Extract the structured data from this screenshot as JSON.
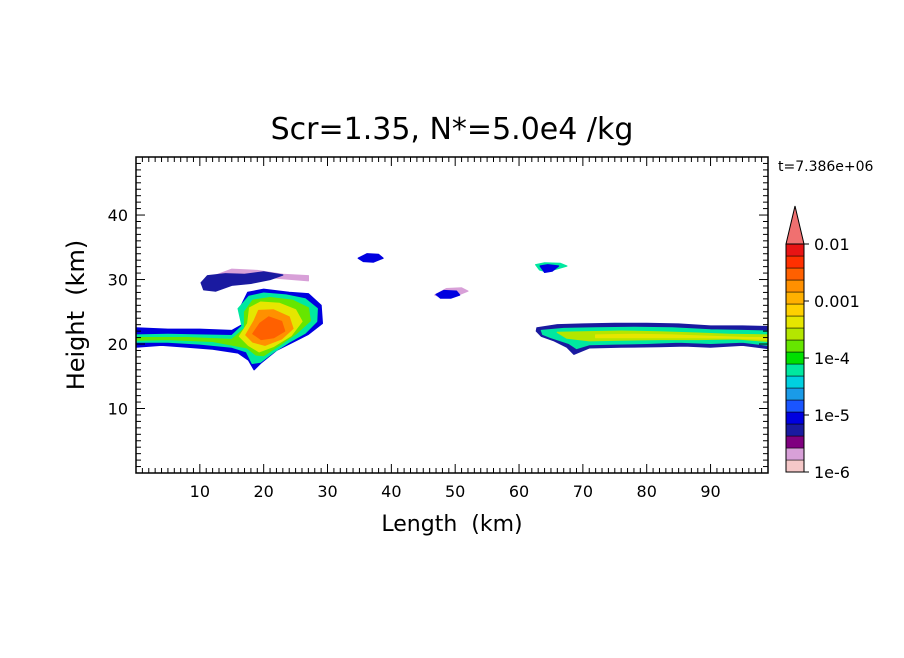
{
  "chart_data": {
    "type": "heatmap",
    "title": "Scr=1.35, N*=5.0e4 /kg",
    "xlabel": "Length  (km)",
    "ylabel": "Height  (km)",
    "time_label": "t=7.386e+06",
    "xlim": [
      0,
      99
    ],
    "ylim": [
      0,
      49
    ],
    "x_ticks": [
      10,
      20,
      30,
      40,
      50,
      60,
      70,
      80,
      90
    ],
    "y_ticks": [
      10,
      20,
      30,
      40
    ],
    "x_minor_step": 1,
    "y_minor_step": 1,
    "grid": false,
    "colorbar": {
      "scale": "log",
      "range": [
        1e-06,
        0.01
      ],
      "labels": [
        "0.01",
        "0.001",
        "1e-4",
        "1e-5",
        "1e-6"
      ],
      "label_values": [
        0.01,
        0.001,
        0.0001,
        1e-05,
        1e-06
      ],
      "colors": [
        "#f5c8c8",
        "#d8a0d8",
        "#7f007f",
        "#1a1aa0",
        "#0000e0",
        "#1a55ff",
        "#1a9be8",
        "#00d0e0",
        "#00e8a0",
        "#00e000",
        "#66e600",
        "#b4e600",
        "#e6e600",
        "#ffd000",
        "#ffb000",
        "#ff9000",
        "#ff6000",
        "#ff3000",
        "#e81414"
      ],
      "extend_color": "#f07070"
    },
    "regions": [
      {
        "level": 1,
        "pts": [
          [
            12,
            30.5
          ],
          [
            15,
            31.6
          ],
          [
            19,
            31.4
          ],
          [
            23,
            30.8
          ],
          [
            27,
            30.6
          ],
          [
            27,
            29.8
          ],
          [
            22,
            30.2
          ],
          [
            17,
            30.6
          ],
          [
            13,
            30.0
          ]
        ]
      },
      {
        "level": 3,
        "pts": [
          [
            10.2,
            29.5
          ],
          [
            11.2,
            30.6
          ],
          [
            14,
            30.9
          ],
          [
            17,
            30.8
          ],
          [
            20,
            31.2
          ],
          [
            23,
            30.7
          ],
          [
            21,
            30.0
          ],
          [
            18,
            29.4
          ],
          [
            15,
            29.1
          ],
          [
            12.5,
            28.2
          ],
          [
            10.6,
            28.4
          ]
        ]
      },
      {
        "level": 4,
        "pts": [
          [
            0,
            22.5
          ],
          [
            5,
            22.3
          ],
          [
            10,
            22.3
          ],
          [
            15,
            22.1
          ],
          [
            17,
            23.2
          ],
          [
            16.5,
            26
          ],
          [
            17.5,
            28
          ],
          [
            20,
            28.5
          ],
          [
            24,
            28
          ],
          [
            27,
            27.8
          ],
          [
            29,
            26
          ],
          [
            29.2,
            23.2
          ],
          [
            27,
            21.5
          ],
          [
            25,
            20.5
          ],
          [
            22,
            19
          ],
          [
            19.5,
            17
          ],
          [
            18.5,
            16
          ],
          [
            17.6,
            17.5
          ],
          [
            16,
            18.6
          ],
          [
            12,
            19.2
          ],
          [
            8,
            19.5
          ],
          [
            4,
            19.8
          ],
          [
            0,
            19.5
          ]
        ]
      },
      {
        "level": 8,
        "pts": [
          [
            0,
            21.4
          ],
          [
            5,
            21.5
          ],
          [
            10,
            21.4
          ],
          [
            15,
            21.3
          ],
          [
            16.6,
            22.8
          ],
          [
            16,
            25.5
          ],
          [
            17.7,
            27.4
          ],
          [
            20,
            27.9
          ],
          [
            23.5,
            27.6
          ],
          [
            26.5,
            27
          ],
          [
            28.4,
            25.5
          ],
          [
            28.3,
            23.5
          ],
          [
            26.5,
            21.7
          ],
          [
            24,
            20.3
          ],
          [
            21.5,
            18.7
          ],
          [
            19.5,
            17.2
          ],
          [
            18.2,
            17
          ],
          [
            17.3,
            18.8
          ],
          [
            15,
            19.5
          ],
          [
            10,
            20
          ],
          [
            5,
            20.3
          ],
          [
            0,
            20.3
          ]
        ]
      },
      {
        "level": 10,
        "pts": [
          [
            0,
            21.0
          ],
          [
            8,
            21.0
          ],
          [
            15,
            20.7
          ],
          [
            17,
            22.4
          ],
          [
            17,
            25
          ],
          [
            18.3,
            26.8
          ],
          [
            21,
            27.2
          ],
          [
            24.5,
            26.8
          ],
          [
            27,
            25.6
          ],
          [
            27.3,
            23.6
          ],
          [
            25.2,
            21.7
          ],
          [
            22.5,
            19.8
          ],
          [
            20,
            18.2
          ],
          [
            18.8,
            18.3
          ],
          [
            17.4,
            19.4
          ],
          [
            12,
            20.4
          ],
          [
            5,
            20.7
          ],
          [
            0,
            20.6
          ]
        ]
      },
      {
        "level": 12,
        "pts": [
          [
            16.2,
            21.2
          ],
          [
            17.5,
            23.2
          ],
          [
            17.8,
            25.6
          ],
          [
            19.5,
            26.5
          ],
          [
            22.5,
            26.3
          ],
          [
            25,
            25.3
          ],
          [
            26,
            23.5
          ],
          [
            24.3,
            21.3
          ],
          [
            21.5,
            19.6
          ],
          [
            19.3,
            18.8
          ],
          [
            17.6,
            19.8
          ]
        ]
      },
      {
        "level": 15,
        "pts": [
          [
            17.2,
            21.4
          ],
          [
            18.5,
            23.6
          ],
          [
            19.2,
            25.2
          ],
          [
            21.5,
            25.3
          ],
          [
            24,
            24.2
          ],
          [
            24.6,
            22.4
          ],
          [
            22.8,
            20.8
          ],
          [
            20.2,
            19.8
          ],
          [
            18.3,
            20.3
          ]
        ]
      },
      {
        "level": 16,
        "pts": [
          [
            18.3,
            21.6
          ],
          [
            19.4,
            23.2
          ],
          [
            20.8,
            24.2
          ],
          [
            22.8,
            23.5
          ],
          [
            23.3,
            22
          ],
          [
            21.6,
            21
          ],
          [
            19.6,
            20.7
          ]
        ]
      },
      {
        "level": 4,
        "pts": [
          [
            34.8,
            33.3
          ],
          [
            36.2,
            34
          ],
          [
            38,
            33.9
          ],
          [
            38.7,
            33.3
          ],
          [
            37.2,
            32.7
          ],
          [
            35.6,
            32.8
          ]
        ]
      },
      {
        "level": 1,
        "pts": [
          [
            46.8,
            27.6
          ],
          [
            48.6,
            28.6
          ],
          [
            51,
            28.7
          ],
          [
            52,
            28.2
          ],
          [
            50.2,
            27.5
          ],
          [
            48,
            27.2
          ]
        ]
      },
      {
        "level": 4,
        "pts": [
          [
            47,
            27.7
          ],
          [
            48.2,
            28.3
          ],
          [
            50.2,
            28.2
          ],
          [
            50.7,
            27.6
          ],
          [
            49.3,
            27.1
          ],
          [
            47.7,
            27.1
          ]
        ]
      },
      {
        "level": 8,
        "pts": [
          [
            62.6,
            32.3
          ],
          [
            64,
            32.6
          ],
          [
            66.5,
            32.5
          ],
          [
            67.5,
            32.1
          ],
          [
            65.8,
            31.6
          ],
          [
            64.3,
            31.2
          ],
          [
            63.2,
            31.5
          ]
        ]
      },
      {
        "level": 4,
        "pts": [
          [
            63.3,
            32.1
          ],
          [
            64.5,
            32.3
          ],
          [
            66.2,
            32.1
          ],
          [
            65.2,
            31.3
          ],
          [
            64,
            31.1
          ]
        ]
      },
      {
        "level": 3,
        "pts": [
          [
            62.8,
            22.5
          ],
          [
            66,
            23
          ],
          [
            70,
            23.1
          ],
          [
            75,
            23.2
          ],
          [
            80,
            23.2
          ],
          [
            85,
            23.1
          ],
          [
            90,
            22.8
          ],
          [
            95,
            22.8
          ],
          [
            99,
            22.7
          ],
          [
            99,
            19.3
          ],
          [
            95,
            19.8
          ],
          [
            90,
            19.5
          ],
          [
            86,
            19.7
          ],
          [
            82,
            19.6
          ],
          [
            76,
            19.5
          ],
          [
            71,
            19.4
          ],
          [
            68.6,
            18.4
          ],
          [
            67.5,
            19.5
          ],
          [
            65.5,
            20.5
          ],
          [
            63.5,
            21.2
          ],
          [
            62.7,
            22
          ]
        ]
      },
      {
        "level": 8,
        "pts": [
          [
            63.5,
            22.1
          ],
          [
            67,
            22.4
          ],
          [
            72,
            22.5
          ],
          [
            78,
            22.6
          ],
          [
            84,
            22.5
          ],
          [
            90,
            22.2
          ],
          [
            95,
            22.1
          ],
          [
            99,
            22
          ],
          [
            99,
            19.8
          ],
          [
            95,
            20.3
          ],
          [
            90,
            20.1
          ],
          [
            85,
            20.3
          ],
          [
            80,
            20.1
          ],
          [
            75,
            20
          ],
          [
            71,
            19.9
          ],
          [
            69,
            19.3
          ],
          [
            67.8,
            20.1
          ],
          [
            65,
            21
          ],
          [
            63.7,
            21.5
          ]
        ]
      },
      {
        "level": 11,
        "pts": [
          [
            66,
            21.8
          ],
          [
            70,
            21.9
          ],
          [
            76,
            22
          ],
          [
            82,
            21.9
          ],
          [
            88,
            21.7
          ],
          [
            93,
            21.5
          ],
          [
            99,
            21.4
          ],
          [
            99,
            20.4
          ],
          [
            94,
            20.8
          ],
          [
            88,
            20.7
          ],
          [
            82,
            20.7
          ],
          [
            76,
            20.6
          ],
          [
            71,
            20.5
          ],
          [
            67.5,
            20.9
          ]
        ]
      },
      {
        "level": 12,
        "pts": [
          [
            72,
            21.4
          ],
          [
            78,
            21.5
          ],
          [
            84,
            21.4
          ],
          [
            90,
            21.2
          ],
          [
            96,
            21
          ],
          [
            99,
            21
          ],
          [
            99,
            20.7
          ],
          [
            94,
            20.9
          ],
          [
            88,
            21
          ],
          [
            82,
            21
          ],
          [
            76,
            21
          ],
          [
            72,
            21
          ]
        ]
      }
    ]
  }
}
